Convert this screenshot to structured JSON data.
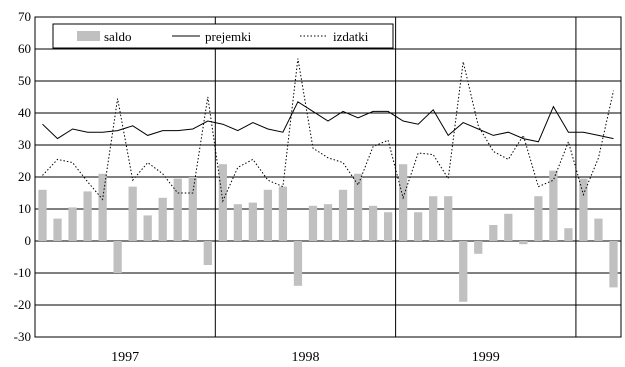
{
  "chart_data": {
    "type": "bar",
    "title": "",
    "xlabel": "",
    "ylabel": "",
    "ylim": [
      -30,
      70
    ],
    "yticks": [
      -30,
      -20,
      -10,
      0,
      10,
      20,
      30,
      40,
      50,
      60,
      70
    ],
    "ytick_labels": [
      "-30",
      "-20",
      "-10",
      "0",
      "10",
      "20",
      "30",
      "40",
      "50",
      "60",
      "70"
    ],
    "grid": "horizontal",
    "legend_position": "top-left",
    "years": [
      {
        "label": "1997",
        "months": 12
      },
      {
        "label": "1998",
        "months": 12
      },
      {
        "label": "1999",
        "months": 12
      },
      {
        "label": "",
        "months": 3
      }
    ],
    "series": [
      {
        "name": "saldo",
        "style": "bar",
        "color": "#c0c0c0",
        "values": [
          16,
          7,
          10.5,
          15.5,
          21,
          -10,
          17,
          8,
          13.5,
          19.5,
          20,
          -7.5,
          24,
          11.5,
          12,
          16,
          17,
          -14,
          11,
          11.5,
          16,
          21,
          11,
          9,
          24,
          9,
          14,
          14,
          -19,
          -4,
          5,
          8.5,
          -1,
          14,
          22,
          4,
          19.5,
          7,
          -14.5
        ]
      },
      {
        "name": "prejemki",
        "style": "solid",
        "color": "#000000",
        "values": [
          36.5,
          32,
          35,
          34,
          34,
          34.5,
          36,
          33,
          34.5,
          34.5,
          35,
          37.5,
          36.5,
          34.5,
          37,
          35,
          34,
          43.5,
          40.5,
          37.5,
          40.5,
          38.5,
          40.5,
          40.5,
          37.5,
          36.5,
          41,
          33,
          37,
          35,
          33,
          34,
          32,
          31,
          42,
          34,
          34,
          33,
          32
        ]
      },
      {
        "name": "izdatki",
        "style": "dotted",
        "color": "#000000",
        "values": [
          20.5,
          25.5,
          24.5,
          18.5,
          13,
          44.5,
          19,
          24.5,
          21,
          15,
          15,
          45,
          12.5,
          23,
          25.5,
          19,
          17,
          57,
          29,
          26,
          24.5,
          17.5,
          29.5,
          31.5,
          13.5,
          27.5,
          27,
          19.5,
          56,
          36,
          28,
          25.5,
          33,
          17,
          19,
          31,
          14.5,
          26,
          47
        ]
      }
    ]
  }
}
